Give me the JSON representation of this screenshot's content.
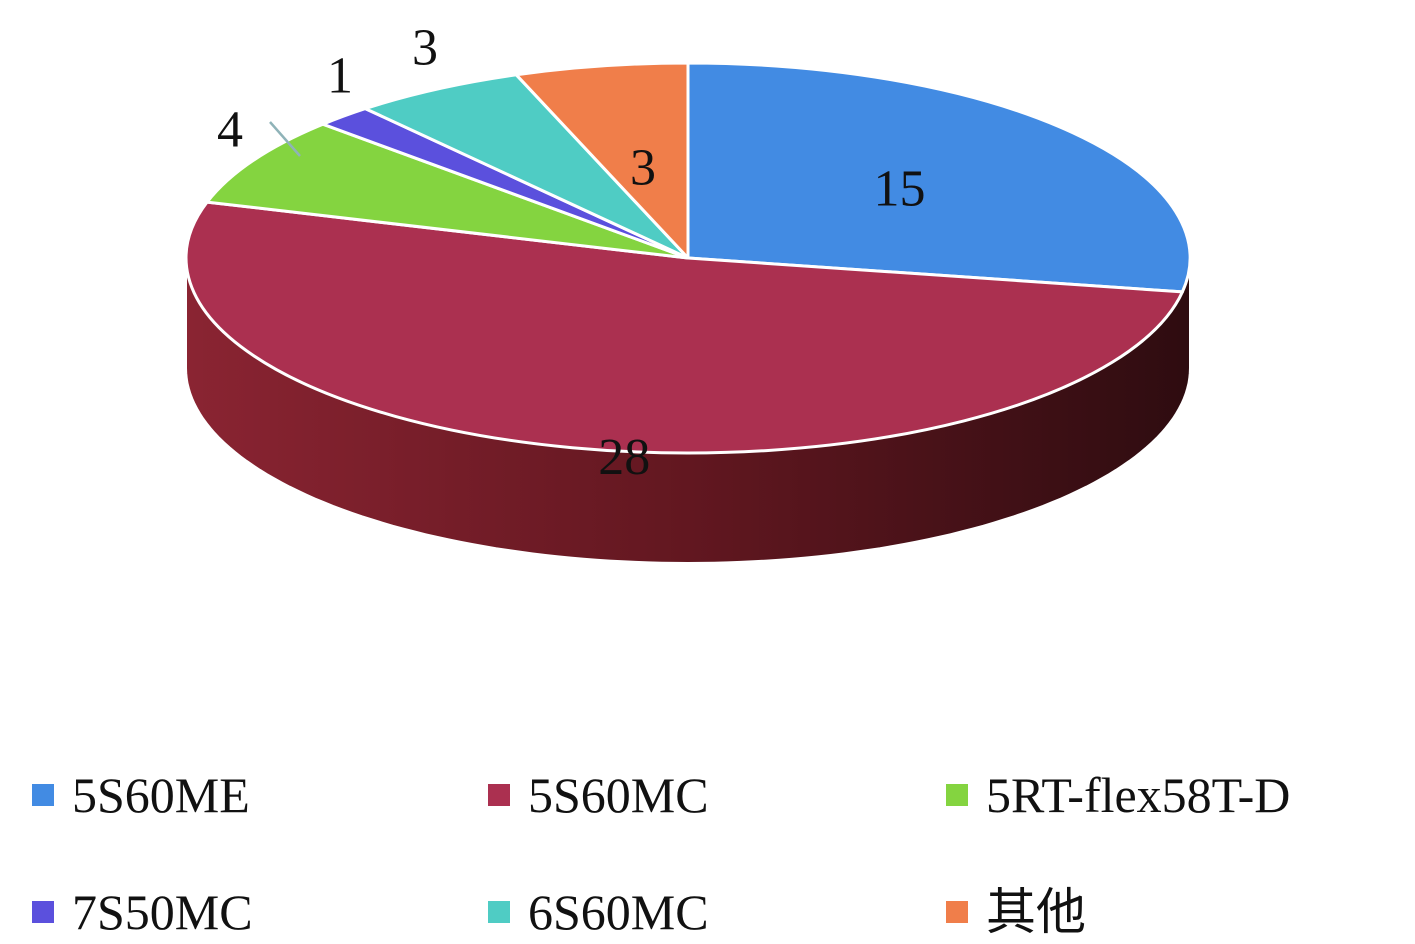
{
  "chart_data": {
    "type": "pie",
    "variant": "3d",
    "title": "",
    "slices": [
      {
        "label": "5S60ME",
        "value": 15,
        "color": "#428BE3"
      },
      {
        "label": "5S60MC",
        "value": 28,
        "color": "#AB3050"
      },
      {
        "label": "5RT-flex58T-D",
        "value": 4,
        "color": "#84D440"
      },
      {
        "label": "7S50MC",
        "value": 1,
        "color": "#5B50DD"
      },
      {
        "label": "6S60MC",
        "value": 3,
        "color": "#4FCCC4"
      },
      {
        "label": "其他",
        "value": 3,
        "color": "#F07E4A"
      }
    ],
    "legend_position": "bottom",
    "data_labels": true
  }
}
